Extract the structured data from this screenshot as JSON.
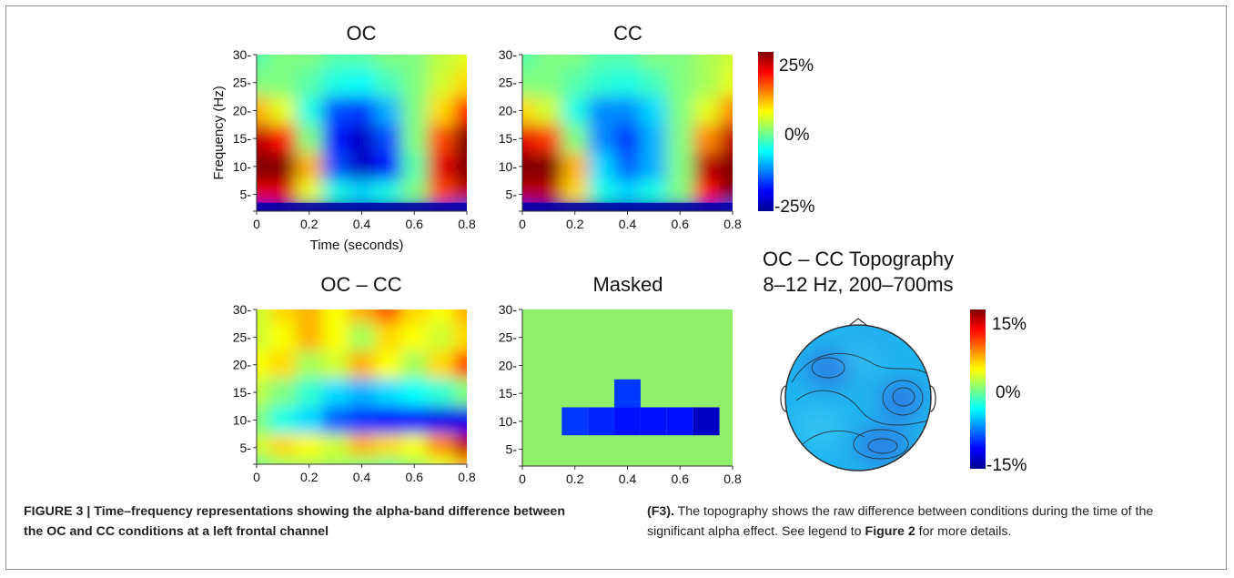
{
  "chart_data": [
    {
      "type": "heatmap",
      "title": "OC",
      "xlabel": "Time (seconds)",
      "ylabel": "Frequency (Hz)",
      "xlim": [
        0,
        0.8
      ],
      "ylim": [
        2,
        30
      ],
      "xticks": [
        "0",
        "0.2",
        "0.4",
        "0.6",
        "0.8"
      ],
      "yticks": [
        "5",
        "10",
        "15",
        "20",
        "25",
        "30"
      ],
      "zlim": [
        -25,
        25
      ],
      "x": [
        0.0,
        0.1,
        0.2,
        0.3,
        0.4,
        0.5,
        0.6,
        0.7,
        0.8
      ],
      "y": [
        2,
        5,
        10,
        15,
        20,
        25,
        30
      ],
      "z": [
        [
          -20,
          -22,
          -23,
          -24,
          -24,
          -23,
          -22,
          -20,
          -15
        ],
        [
          20,
          20,
          5,
          -5,
          -8,
          -5,
          0,
          15,
          22
        ],
        [
          25,
          25,
          10,
          -15,
          -22,
          -18,
          -2,
          20,
          25
        ],
        [
          22,
          18,
          0,
          -18,
          -22,
          -15,
          0,
          15,
          25
        ],
        [
          10,
          5,
          -5,
          -15,
          -16,
          -10,
          0,
          8,
          18
        ],
        [
          0,
          0,
          -2,
          -5,
          -6,
          -3,
          0,
          4,
          8
        ],
        [
          -2,
          0,
          0,
          -2,
          -2,
          0,
          0,
          3,
          5
        ]
      ]
    },
    {
      "type": "heatmap",
      "title": "CC",
      "xlim": [
        0,
        0.8
      ],
      "ylim": [
        2,
        30
      ],
      "xticks": [
        "0",
        "0.2",
        "0.4",
        "0.6",
        "0.8"
      ],
      "yticks": [
        "5",
        "10",
        "15",
        "20",
        "25",
        "30"
      ],
      "zlim": [
        -25,
        25
      ],
      "x": [
        0.0,
        0.1,
        0.2,
        0.3,
        0.4,
        0.5,
        0.6,
        0.7,
        0.8
      ],
      "y": [
        2,
        5,
        10,
        15,
        20,
        25,
        30
      ],
      "z": [
        [
          -20,
          -22,
          -23,
          -24,
          -24,
          -23,
          -22,
          -20,
          -15
        ],
        [
          22,
          22,
          8,
          -5,
          -8,
          -5,
          0,
          18,
          25
        ],
        [
          25,
          25,
          10,
          -8,
          -14,
          -10,
          0,
          22,
          25
        ],
        [
          20,
          16,
          0,
          -12,
          -16,
          -10,
          0,
          12,
          22
        ],
        [
          8,
          4,
          -5,
          -12,
          -12,
          -8,
          0,
          5,
          12
        ],
        [
          0,
          0,
          -2,
          -4,
          -5,
          -3,
          0,
          2,
          5
        ],
        [
          -2,
          0,
          0,
          -2,
          -2,
          0,
          0,
          2,
          4
        ]
      ]
    },
    {
      "type": "heatmap",
      "title": "OC – CC",
      "xlim": [
        0,
        0.8
      ],
      "ylim": [
        2,
        30
      ],
      "xticks": [
        "0",
        "0.2",
        "0.4",
        "0.6",
        "0.8"
      ],
      "yticks": [
        "5",
        "10",
        "15",
        "20",
        "25",
        "30"
      ],
      "zlim": [
        -25,
        25
      ],
      "x": [
        0.0,
        0.1,
        0.2,
        0.3,
        0.4,
        0.5,
        0.6,
        0.7,
        0.8
      ],
      "y": [
        2,
        5,
        10,
        15,
        20,
        25,
        30
      ],
      "z": [
        [
          0,
          2,
          3,
          2,
          1,
          0,
          2,
          5,
          10
        ],
        [
          4,
          8,
          6,
          4,
          10,
          8,
          6,
          12,
          22
        ],
        [
          0,
          -5,
          -8,
          -14,
          -16,
          -18,
          -18,
          -20,
          -20
        ],
        [
          3,
          0,
          -4,
          -8,
          -10,
          -8,
          -6,
          -4,
          0
        ],
        [
          6,
          8,
          2,
          4,
          10,
          6,
          2,
          8,
          15
        ],
        [
          4,
          6,
          10,
          6,
          2,
          8,
          6,
          4,
          8
        ],
        [
          4,
          8,
          10,
          6,
          10,
          14,
          8,
          6,
          10
        ]
      ]
    },
    {
      "type": "heatmap",
      "title": "Masked",
      "xlim": [
        0,
        0.8
      ],
      "ylim": [
        2,
        30
      ],
      "xticks": [
        "0",
        "0.2",
        "0.4",
        "0.6",
        "0.8"
      ],
      "yticks": [
        "5",
        "10",
        "15",
        "20",
        "25",
        "30"
      ],
      "zlim": [
        -25,
        25
      ],
      "x": [
        0.0,
        0.1,
        0.2,
        0.3,
        0.4,
        0.5,
        0.6,
        0.7,
        0.8
      ],
      "y": [
        2,
        5,
        10,
        15,
        20,
        25,
        30
      ],
      "z": [
        [
          0,
          0,
          0,
          0,
          0,
          0,
          0,
          0,
          0
        ],
        [
          0,
          0,
          0,
          0,
          0,
          0,
          0,
          0,
          0
        ],
        [
          0,
          0,
          -16,
          -17,
          -18,
          -18,
          -18,
          -22,
          0
        ],
        [
          0,
          0,
          0,
          0,
          -16,
          0,
          0,
          0,
          0
        ],
        [
          0,
          0,
          0,
          0,
          0,
          0,
          0,
          0,
          0
        ],
        [
          0,
          0,
          0,
          0,
          0,
          0,
          0,
          0,
          0
        ],
        [
          0,
          0,
          0,
          0,
          0,
          0,
          0,
          0,
          0
        ]
      ]
    }
  ],
  "colorbars": {
    "top": {
      "max": "25%",
      "mid": "0%",
      "min": "-25%"
    },
    "bottom": {
      "max": "15%",
      "mid": "0%",
      "min": "-15%"
    }
  },
  "topography": {
    "title_line1": "OC – CC Topography",
    "title_line2": "8–12 Hz, 200–700ms"
  },
  "caption": {
    "left": "FIGURE 3 | Time–frequency representations showing the alpha-band difference between the OC and CC conditions at a left frontal channel",
    "right_bold_prefix": "(F3).",
    "right_text": " The topography shows the raw difference between conditions during the time of the significant alpha effect. See legend to ",
    "right_bold_ref": "Figure 2",
    "right_suffix": " for more details."
  },
  "colors": {
    "frame": "#8f8f8f",
    "jet_low": "#00008f",
    "jet_high": "#800000",
    "masked_bg": "#8ef06a"
  }
}
